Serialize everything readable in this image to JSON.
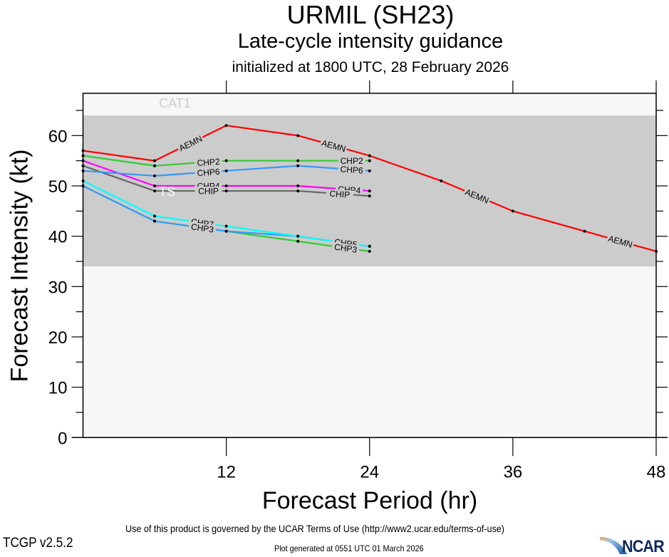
{
  "chart_data": {
    "type": "line",
    "title": "URMIL (SH23)",
    "subtitle": "Late-cycle intensity guidance",
    "subtitle2": "initialized at 1800 UTC, 28 February 2026",
    "xlabel": "Forecast Period (hr)",
    "ylabel": "Forecast Intensity (kt)",
    "xlim": [
      0,
      48
    ],
    "ylim": [
      0,
      68.4
    ],
    "xticks": [
      12,
      24,
      36,
      48
    ],
    "yticks": [
      0,
      10,
      20,
      30,
      40,
      50,
      60
    ],
    "grid": false,
    "bands": [
      {
        "name": "TS",
        "from": 34,
        "to": 64,
        "color": "#cccccc",
        "label_color": "#ffffff",
        "label_x": 6
      },
      {
        "name": "CAT1",
        "from": 64,
        "to": 83,
        "color": "#f7f7f7",
        "label_color": "#cccccc",
        "label_x": 6
      }
    ],
    "series": [
      {
        "name": "AEMN",
        "color": "#ff0000",
        "x": [
          0,
          6,
          12,
          18,
          24,
          30,
          36,
          42,
          48
        ],
        "values": [
          57,
          55,
          62,
          60,
          56,
          51,
          45,
          41,
          37
        ],
        "label_positions": [
          9,
          21,
          33,
          45
        ]
      },
      {
        "name": "CHP2",
        "color": "#33cc33",
        "x": [
          0,
          6,
          12,
          18,
          24
        ],
        "values": [
          56,
          54,
          55,
          55,
          55
        ],
        "label_positions": [
          10.5,
          22.5
        ]
      },
      {
        "name": "CHP6",
        "color": "#3399ff",
        "x": [
          0,
          6,
          12,
          18,
          24
        ],
        "values": [
          53,
          52,
          53,
          54,
          53
        ],
        "label_positions": [
          10.5,
          22.5
        ]
      },
      {
        "name": "CHP4",
        "color": "#ff00ff",
        "x": [
          0,
          6,
          12,
          18,
          24
        ],
        "values": [
          55,
          50,
          50,
          50,
          49
        ],
        "label_positions": [
          10.5,
          22.3
        ]
      },
      {
        "name": "CHIP",
        "color": "#666666",
        "x": [
          0,
          6,
          12,
          18,
          24
        ],
        "values": [
          54,
          49,
          49,
          49,
          48
        ],
        "label_positions": [
          10.5,
          21.5
        ]
      },
      {
        "name": "CHP7",
        "color": "#00ffff",
        "x": [
          0,
          6,
          12,
          18,
          24
        ],
        "values": [
          51,
          44,
          42,
          40,
          38
        ],
        "label_positions": [
          10,
          22
        ]
      },
      {
        "name": "CHP5",
        "color": "#3399ff",
        "x": [
          0,
          6,
          12,
          18,
          24
        ],
        "values": [
          50,
          43,
          41,
          40,
          38
        ],
        "label_positions": [
          10,
          22
        ]
      },
      {
        "name": "CHP3",
        "color": "#33cc33",
        "x": [
          0,
          6,
          12,
          18,
          24
        ],
        "values": [
          50,
          43,
          41,
          39,
          37
        ],
        "label_positions": [
          10,
          22
        ]
      }
    ]
  },
  "footer": {
    "terms": "Use of this product is governed by the UCAR Terms of Use (http://www2.ucar.edu/terms-of-use)",
    "version": "TCGP v2.5.2",
    "generated": "Plot generated at 0551 UTC   01 March 2026",
    "logo_text": "NCAR"
  }
}
